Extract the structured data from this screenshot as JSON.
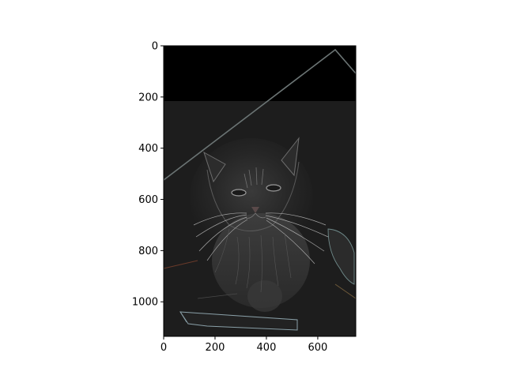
{
  "chart_data": {
    "type": "image",
    "subject": "cat",
    "colormap": "grayscale-dark",
    "title": "",
    "xlabel": "",
    "ylabel": "",
    "xlim": [
      0,
      748
    ],
    "ylim": [
      1135,
      0
    ],
    "x_ticks": [
      0,
      200,
      400,
      600
    ],
    "y_ticks": [
      0,
      200,
      400,
      600,
      800,
      1000
    ],
    "x_tick_labels": [
      "0",
      "200",
      "400",
      "600"
    ],
    "y_tick_labels": [
      "0",
      "200",
      "400",
      "600",
      "800",
      "1000"
    ],
    "grid": false,
    "legend": "none"
  }
}
